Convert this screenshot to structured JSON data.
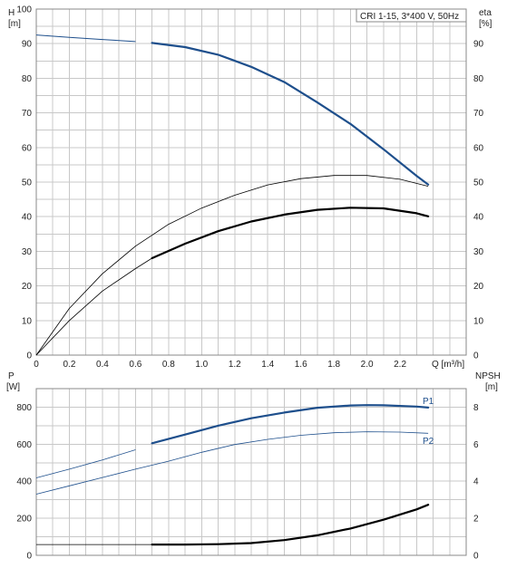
{
  "chart_data": [
    {
      "type": "line",
      "x_label": "Q [m³/h]",
      "y_label_left": [
        "H",
        "[m]"
      ],
      "y_label_right": [
        "eta",
        "[%]"
      ],
      "legend_text": "CRI 1-15, 3*400 V, 50Hz",
      "xlim": [
        0,
        2.6
      ],
      "ylim": [
        0,
        100
      ],
      "x_ticks": [
        "0",
        "0.2",
        "0.4",
        "0.6",
        "0.8",
        "1.0",
        "1.2",
        "1.4",
        "1.6",
        "1.8",
        "2.0",
        "2.2"
      ],
      "y_ticks_left": [
        "0",
        "10",
        "20",
        "30",
        "40",
        "50",
        "60",
        "70",
        "80",
        "90",
        "100"
      ],
      "y_ticks_right": [
        "0",
        "10",
        "20",
        "30",
        "40",
        "50",
        "60",
        "70",
        "80",
        "90"
      ],
      "grid": true,
      "series": [
        {
          "color": "#1e4f8c",
          "width_thin": 1,
          "width_thick": 2.2,
          "thick_from": 0.68,
          "x": [
            0,
            0.2,
            0.4,
            0.6,
            0.7,
            0.9,
            1.1,
            1.3,
            1.5,
            1.7,
            1.9,
            2.1,
            2.3,
            2.37
          ],
          "y": [
            92.5,
            91.8,
            91.2,
            90.6,
            90.2,
            89.0,
            86.8,
            83.3,
            78.9,
            73.0,
            66.8,
            59.5,
            51.8,
            49.3
          ]
        },
        {
          "color": "#000000",
          "width_thin": 0.8,
          "width_thick": 0.8,
          "thick_from": 99,
          "x": [
            0,
            0.2,
            0.4,
            0.6,
            0.8,
            1.0,
            1.2,
            1.4,
            1.6,
            1.8,
            2.0,
            2.2,
            2.37
          ],
          "y": [
            0,
            13.5,
            23.5,
            31.5,
            37.8,
            42.5,
            46.2,
            49.2,
            51.0,
            51.9,
            51.9,
            50.8,
            48.8
          ]
        },
        {
          "color": "#000000",
          "width_thin": 0.8,
          "width_thick": 2.2,
          "thick_from": 0.7,
          "x": [
            0,
            0.2,
            0.4,
            0.6,
            0.7,
            0.9,
            1.1,
            1.3,
            1.5,
            1.7,
            1.9,
            2.1,
            2.3,
            2.37
          ],
          "y": [
            0,
            10.0,
            18.5,
            25.0,
            28.0,
            32.2,
            35.8,
            38.6,
            40.6,
            42.0,
            42.6,
            42.4,
            41.0,
            40.1
          ]
        }
      ]
    },
    {
      "type": "line",
      "y_label_left": [
        "P",
        "[W]"
      ],
      "y_label_right": [
        "NPSH",
        "[m]"
      ],
      "xlim": [
        0,
        2.6
      ],
      "ylim": [
        0,
        900
      ],
      "y_ticks_left": [
        "0",
        "200",
        "400",
        "600",
        "800"
      ],
      "y_ticks_right": [
        "0",
        "2",
        "4",
        "6",
        "8"
      ],
      "grid": true,
      "series": [
        {
          "name": "P1",
          "color": "#1e4f8c",
          "width_thin": 0.8,
          "width_thick": 2.2,
          "thick_from": 0.68,
          "x": [
            0,
            0.2,
            0.4,
            0.6,
            0.7,
            0.9,
            1.1,
            1.3,
            1.5,
            1.7,
            1.9,
            2.0,
            2.1,
            2.3,
            2.37
          ],
          "y": [
            418,
            465,
            515,
            570,
            605,
            652,
            700,
            740,
            771,
            797,
            809,
            811,
            810,
            803,
            798
          ]
        },
        {
          "name": "P2",
          "color": "#1e4f8c",
          "width_thin": 0.8,
          "width_thick": 0.8,
          "thick_from": 99,
          "x": [
            0,
            0.2,
            0.4,
            0.6,
            0.8,
            1.0,
            1.2,
            1.4,
            1.6,
            1.8,
            2.0,
            2.2,
            2.37
          ],
          "y": [
            330,
            375,
            420,
            465,
            508,
            556,
            598,
            626,
            648,
            662,
            667,
            665,
            659
          ]
        },
        {
          "color": "#000000",
          "width_thin": 0.8,
          "width_thick": 2.2,
          "thick_from": 0.7,
          "x": [
            0,
            0.2,
            0.4,
            0.6,
            0.7,
            0.9,
            1.1,
            1.3,
            1.5,
            1.7,
            1.9,
            2.1,
            2.3,
            2.37
          ],
          "y": [
            58,
            58,
            58,
            58,
            58,
            58,
            60,
            66,
            82,
            108,
            145,
            192,
            248,
            273
          ]
        }
      ]
    }
  ]
}
